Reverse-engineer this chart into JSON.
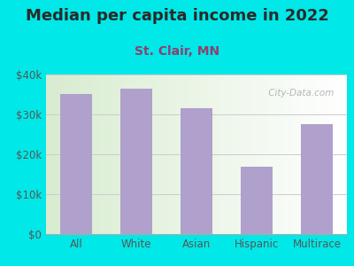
{
  "title": "Median per capita income in 2022",
  "subtitle": "St. Clair, MN",
  "categories": [
    "All",
    "White",
    "Asian",
    "Hispanic",
    "Multirace"
  ],
  "values": [
    35000,
    36500,
    31500,
    17000,
    27500
  ],
  "bar_color": "#b0a0cc",
  "bg_outer": "#00e8e8",
  "bg_inner_left": "#d8ecd0",
  "bg_inner_right": "#ffffff",
  "title_color": "#2a2a2a",
  "subtitle_color": "#8b4070",
  "tick_color": "#555555",
  "ylim": [
    0,
    40000
  ],
  "yticks": [
    0,
    10000,
    20000,
    30000,
    40000
  ],
  "ytick_labels": [
    "$0",
    "$10k",
    "$20k",
    "$30k",
    "$40k"
  ],
  "watermark": " City-Data.com",
  "title_fontsize": 13,
  "subtitle_fontsize": 10,
  "tick_fontsize": 8.5
}
